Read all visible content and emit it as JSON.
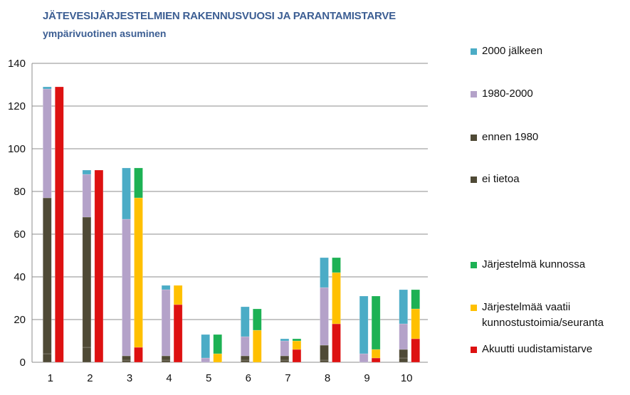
{
  "chart_data": {
    "type": "bar",
    "stacked": true,
    "title": "JÄTEVESIJÄRJESTELMIEN RAKENNUSVUOSI JA PARANTAMISTARVE",
    "subtitle": "ympärivuotinen asuminen",
    "categories": [
      "1",
      "2",
      "3",
      "4",
      "5",
      "6",
      "7",
      "8",
      "9",
      "10"
    ],
    "ylim": [
      0,
      140
    ],
    "yticks": [
      0,
      20,
      40,
      60,
      80,
      100,
      120,
      140
    ],
    "grid": true,
    "legend_position": "right",
    "groups": [
      {
        "name": "construction-year",
        "series": [
          {
            "name": "ei tietoa",
            "color": "#4f4a36",
            "values": [
              4,
              7,
              1,
              1,
              0,
              1,
              1,
              1,
              0,
              2
            ]
          },
          {
            "name": "ennen 1980",
            "color": "#4f4a36",
            "values": [
              73,
              61,
              2,
              2,
              0,
              2,
              2,
              7,
              0,
              4
            ]
          },
          {
            "name": "1980-2000",
            "color": "#b4a2c9",
            "values": [
              51,
              20,
              64,
              31,
              2,
              9,
              7,
              27,
              4,
              12
            ]
          },
          {
            "name": "2000 jälkeen",
            "color": "#4bacc6",
            "values": [
              1,
              2,
              24,
              2,
              11,
              14,
              1,
              14,
              27,
              16
            ]
          }
        ]
      },
      {
        "name": "improvement-need",
        "series": [
          {
            "name": "Akuutti uudistamistarve",
            "color": "#dd1111",
            "values": [
              129,
              90,
              7,
              27,
              0,
              0,
              6,
              18,
              2,
              11
            ]
          },
          {
            "name": "Järjestelmää vaatii kunnostustoimia/seuranta",
            "color": "#ffc000",
            "values": [
              0,
              0,
              70,
              9,
              4,
              15,
              4,
              24,
              4,
              14
            ]
          },
          {
            "name": "Järjestelmä kunnossa",
            "color": "#1db154",
            "values": [
              0,
              0,
              14,
              0,
              9,
              10,
              1,
              7,
              25,
              9
            ]
          }
        ]
      }
    ],
    "legend": [
      {
        "label": "2000 jälkeen",
        "color": "#4bacc6"
      },
      {
        "label": "1980-2000",
        "color": "#b4a2c9"
      },
      {
        "label": "ennen 1980",
        "color": "#4f4a36"
      },
      {
        "label": "ei tietoa",
        "color": "#4f4a36"
      },
      {
        "label": "Järjestelmä kunnossa",
        "color": "#1db154"
      },
      {
        "label": "Järjestelmää vaatii kunnostustoimia/seuranta",
        "color": "#ffc000"
      },
      {
        "label": "Akuutti uudistamistarve",
        "color": "#dd1111"
      }
    ]
  }
}
